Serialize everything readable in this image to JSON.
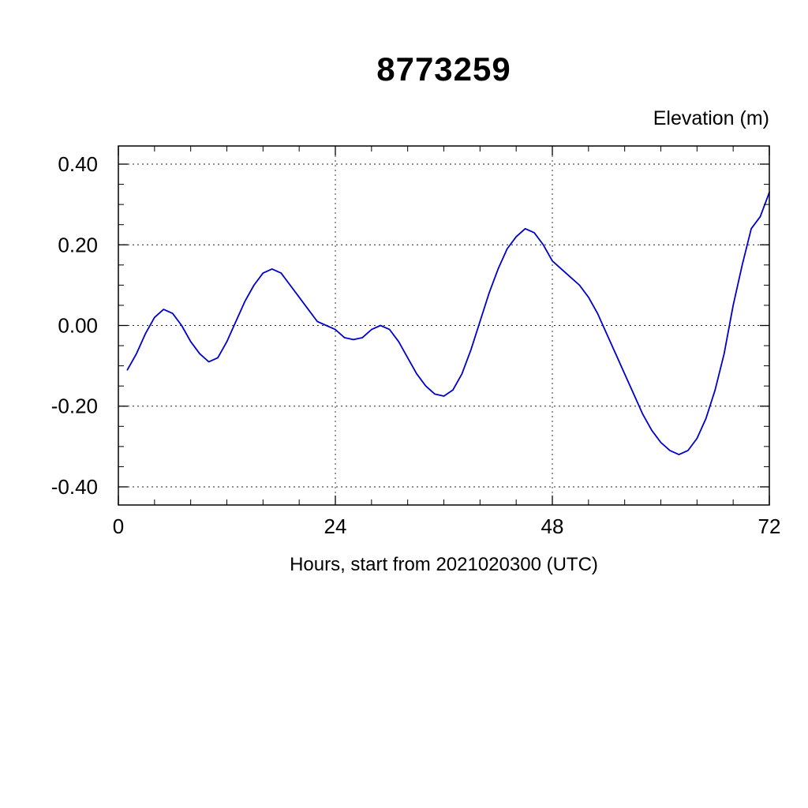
{
  "chart_data": {
    "type": "line",
    "title": "8773259",
    "ylabel": "Elevation (m)",
    "xlabel": "Hours, start from 2021020300 (UTC)",
    "xlim": [
      0,
      72
    ],
    "ylim": [
      -0.445,
      0.445
    ],
    "x_ticks": [
      0,
      24,
      48,
      72
    ],
    "x_tick_labels": [
      "0",
      "24",
      "48",
      "72"
    ],
    "x_minor_step": 4,
    "x_gridlines": [
      24,
      48
    ],
    "y_ticks": [
      -0.4,
      -0.2,
      0,
      0.2,
      0.4
    ],
    "y_tick_labels": [
      "-0.40",
      "-0.20",
      "0.00",
      "0.20",
      "0.40"
    ],
    "y_minor_step": 0.05,
    "grid": "dashed",
    "legend": "none",
    "line_color": "#0000cd",
    "series": [
      {
        "name": "elevation",
        "x": [
          1,
          2,
          3,
          4,
          5,
          6,
          7,
          8,
          9,
          10,
          11,
          12,
          13,
          14,
          15,
          16,
          17,
          18,
          19,
          20,
          21,
          22,
          23,
          24,
          25,
          26,
          27,
          28,
          29,
          30,
          31,
          32,
          33,
          34,
          35,
          36,
          37,
          38,
          39,
          40,
          41,
          42,
          43,
          44,
          45,
          46,
          47,
          48,
          49,
          50,
          51,
          52,
          53,
          54,
          55,
          56,
          57,
          58,
          59,
          60,
          61,
          62,
          63,
          64,
          65,
          66,
          67,
          68,
          69,
          70,
          71,
          72
        ],
        "y": [
          -0.11,
          -0.07,
          -0.02,
          0.02,
          0.04,
          0.03,
          0.0,
          -0.04,
          -0.07,
          -0.09,
          -0.08,
          -0.04,
          0.01,
          0.06,
          0.1,
          0.13,
          0.14,
          0.13,
          0.1,
          0.07,
          0.04,
          0.01,
          0.0,
          -0.01,
          -0.03,
          -0.035,
          -0.03,
          -0.01,
          0.0,
          -0.01,
          -0.04,
          -0.08,
          -0.12,
          -0.15,
          -0.17,
          -0.175,
          -0.16,
          -0.12,
          -0.06,
          0.01,
          0.08,
          0.14,
          0.19,
          0.22,
          0.24,
          0.23,
          0.2,
          0.16,
          0.14,
          0.12,
          0.1,
          0.07,
          0.03,
          -0.02,
          -0.07,
          -0.12,
          -0.17,
          -0.22,
          -0.26,
          -0.29,
          -0.31,
          -0.32,
          -0.31,
          -0.28,
          -0.23,
          -0.16,
          -0.07,
          0.05,
          0.15,
          0.24,
          0.27,
          0.33
        ]
      }
    ]
  }
}
